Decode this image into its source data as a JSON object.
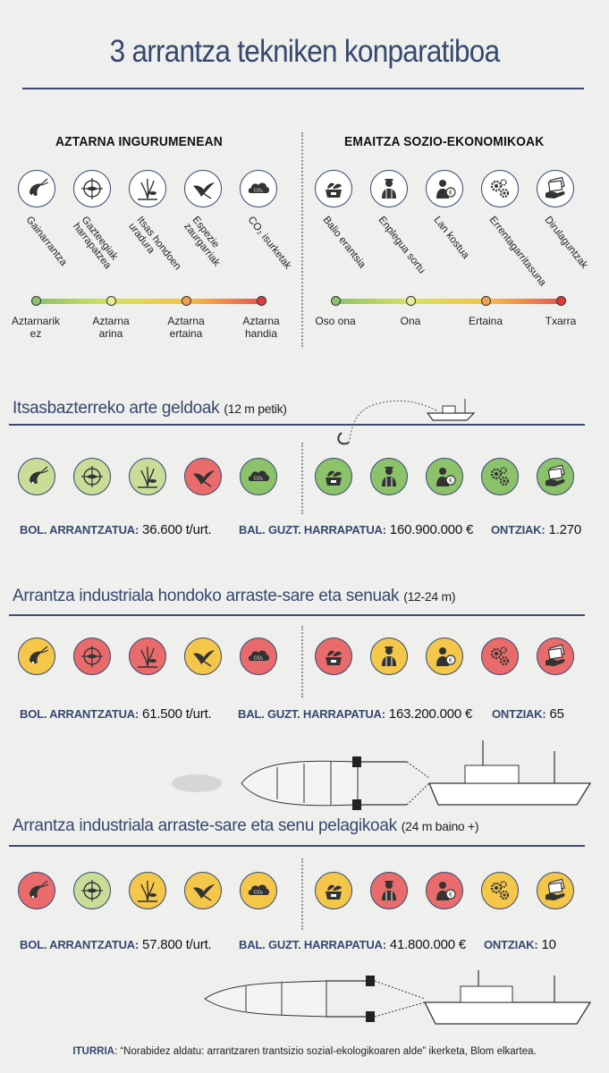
{
  "title": "3 arrantza tekniken konparatiboa",
  "columns": {
    "env": "AZTARNA INGURUMENEAN",
    "socio": "EMAITZA SOZIO-EKONOMIKOAK"
  },
  "env_icons": [
    {
      "icon": "shrimp-icon",
      "label": "Gainarrantza"
    },
    {
      "icon": "target-icon",
      "label": "Gazteegiak harrapatzea"
    },
    {
      "icon": "seabed-plant-icon",
      "label": "Itsas hondoen uradura"
    },
    {
      "icon": "bird-icon",
      "label": "Espezie zaurgarriak"
    },
    {
      "icon": "co2-cloud-icon",
      "label": "CO₂ isurketak"
    }
  ],
  "socio_icons": [
    {
      "icon": "fish-crate-icon",
      "label": "Balio erantsia"
    },
    {
      "icon": "worker-icon",
      "label": "Enplegua sortu"
    },
    {
      "icon": "worker-euro-icon",
      "label": "Lan kostua"
    },
    {
      "icon": "gears-icon",
      "label": "Errentagarritasuna"
    },
    {
      "icon": "subsidy-hand-icon",
      "label": "Dirulaguntzak"
    }
  ],
  "env_scale": [
    "Aztarnarik ez",
    "Aztarna arina",
    "Aztarna ertaina",
    "Aztarna handia"
  ],
  "socio_scale": [
    "Oso ona",
    "Ona",
    "Ertaina",
    "Txarra"
  ],
  "colors": {
    "green": "#8cc26a",
    "lightgreen": "#c9dd98",
    "yellow": "#f4c64a",
    "red": "#ea6b6b",
    "navy": "#35486f"
  },
  "stat_labels": {
    "catch": "BOL. ARRANTZATUA:",
    "value": "BAL. GUZT. HARRAPATUA:",
    "boats": "ONTZIAK:"
  },
  "sections": [
    {
      "name": "Itsasbazterreko arte geldoak",
      "size": "(12 m petik)",
      "env_ratings": [
        "lightgreen",
        "lightgreen",
        "lightgreen",
        "red",
        "green"
      ],
      "socio_ratings": [
        "green",
        "green",
        "green",
        "green",
        "green"
      ],
      "catch": "36.600 t/urt.",
      "value": "160.900.000 €",
      "boats": "1.270"
    },
    {
      "name": "Arrantza industriala hondoko arraste-sare eta senuak",
      "size": "(12-24 m)",
      "env_ratings": [
        "yellow",
        "red",
        "red",
        "yellow",
        "red"
      ],
      "socio_ratings": [
        "red",
        "yellow",
        "yellow",
        "red",
        "red"
      ],
      "catch": "61.500 t/urt.",
      "value": "163.200.000 €",
      "boats": "65"
    },
    {
      "name": "Arrantza industriala arraste-sare eta senu pelagikoak",
      "size": "(24 m baino +)",
      "env_ratings": [
        "red",
        "lightgreen",
        "yellow",
        "yellow",
        "yellow"
      ],
      "socio_ratings": [
        "yellow",
        "red",
        "red",
        "yellow",
        "yellow"
      ],
      "catch": "57.800 t/urt.",
      "value": "41.800.000 €",
      "boats": "10"
    }
  ],
  "source": {
    "label": "ITURRIA",
    "text": ": “Norabidez aldatu: arrantzaren trantsizio sozial-ekologikoaren alde” ikerketa, Blom elkartea."
  }
}
